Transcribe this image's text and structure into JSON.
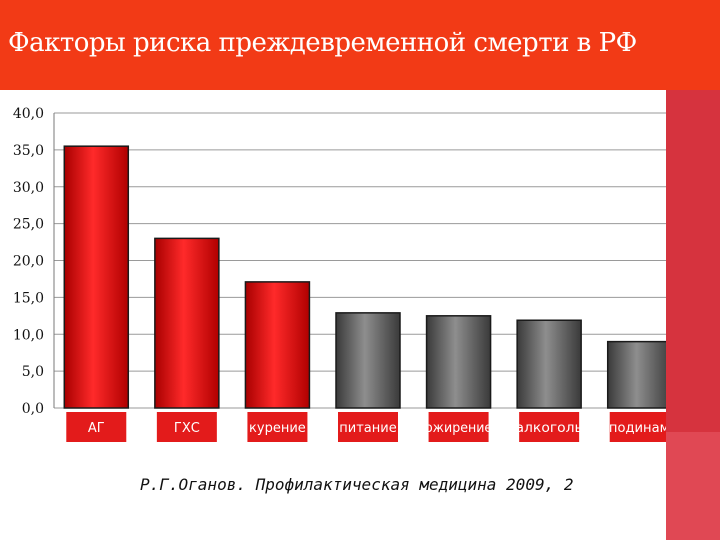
{
  "slide": {
    "title": "Факторы риска преждевременной смерти в РФ",
    "source": "Р.Г.Оганов. Профилактическая медицина 2009, 2"
  },
  "colors": {
    "header": "#f23a16",
    "accent_band": "#d6333e",
    "bar_red": "#e31b1b",
    "bar_gray": "#6a6a6a",
    "category_label_bg": "#e31b1b"
  },
  "chart_data": {
    "type": "bar",
    "categories": [
      "АГ",
      "ГХС",
      "курение",
      "питание",
      "ожирение",
      "алкоголь",
      "гиподинамия"
    ],
    "values": [
      35.5,
      23.0,
      17.1,
      12.9,
      12.5,
      11.9,
      9.0
    ],
    "bar_colors": [
      "red",
      "red",
      "red",
      "gray",
      "gray",
      "gray",
      "gray"
    ],
    "ylim": [
      0,
      40
    ],
    "yticks": [
      "0,0",
      "5,0",
      "10,0",
      "15,0",
      "20,0",
      "25,0",
      "30,0",
      "35,0",
      "40,0"
    ],
    "grid": true,
    "legend": "none"
  }
}
